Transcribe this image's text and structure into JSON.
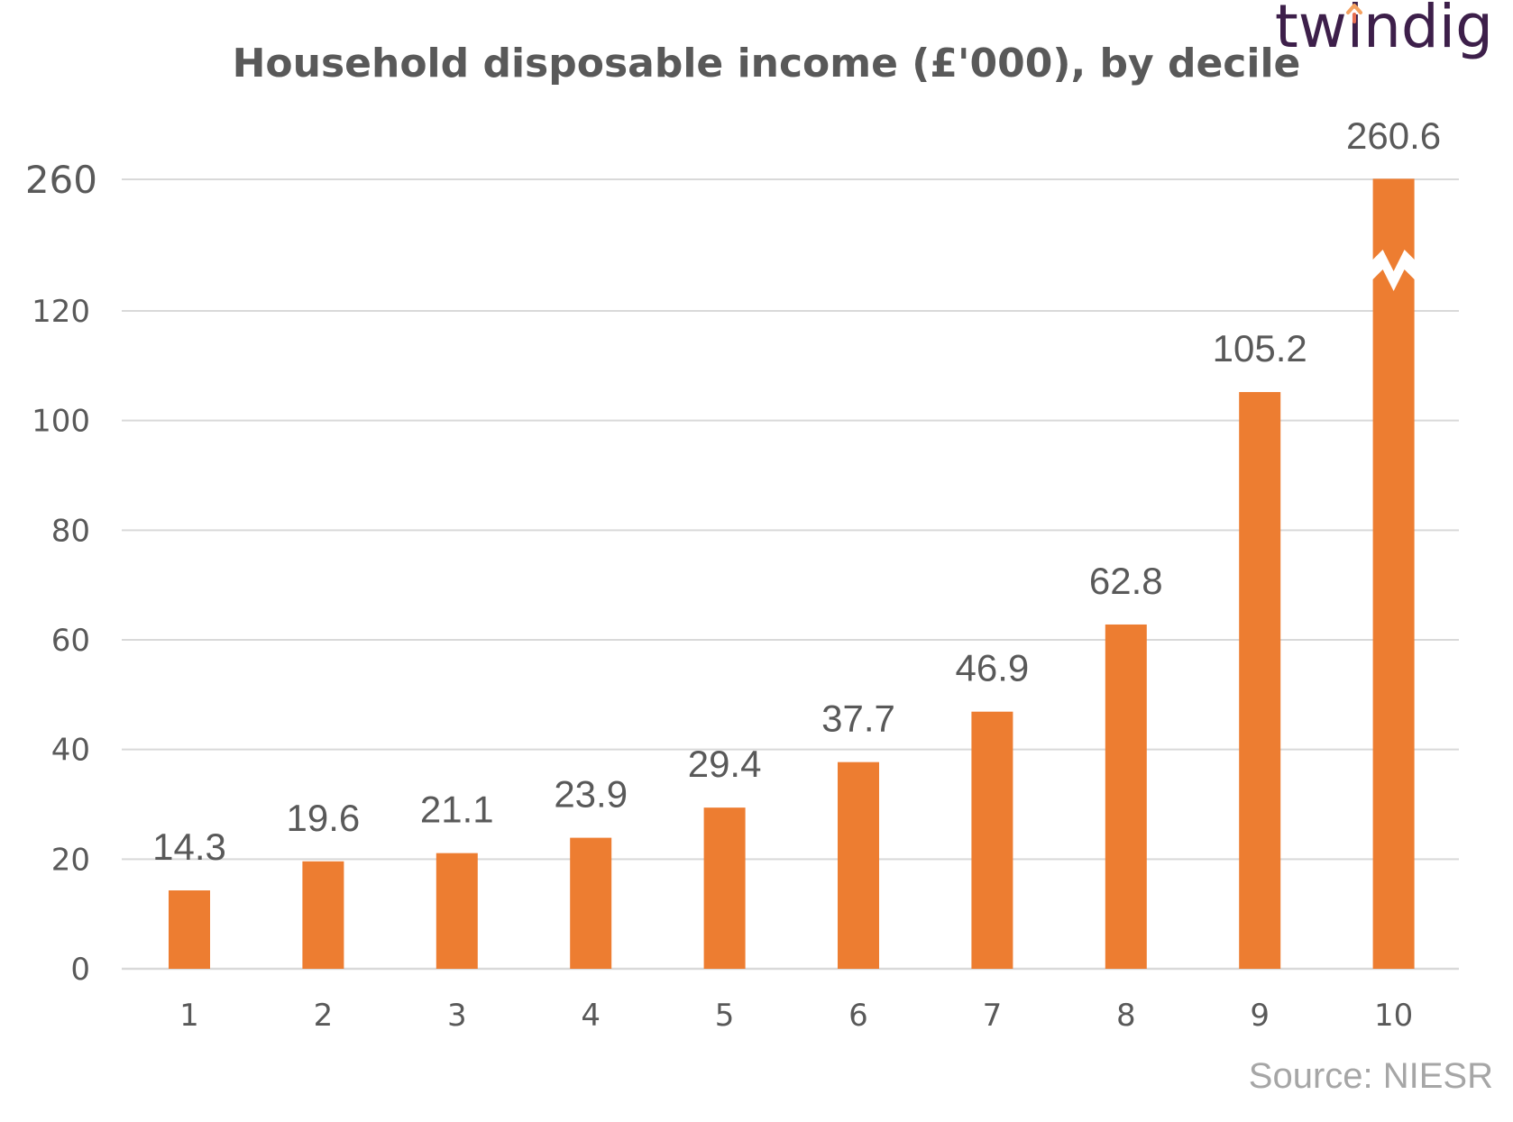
{
  "chart_data": {
    "type": "bar",
    "title": "Household disposable income (£'000), by decile",
    "categories": [
      "1",
      "2",
      "3",
      "4",
      "5",
      "6",
      "7",
      "8",
      "9",
      "10"
    ],
    "values": [
      14.3,
      19.6,
      21.1,
      23.9,
      29.4,
      37.7,
      46.9,
      62.8,
      105.2,
      260.6
    ],
    "data_labels": [
      "14.3",
      "19.6",
      "21.1",
      "23.9",
      "29.4",
      "37.7",
      "46.9",
      "62.8",
      "105.2",
      "260.6"
    ],
    "y_ticks": [
      "0",
      "20",
      "40",
      "60",
      "80",
      "100",
      "120",
      "260"
    ],
    "ylim": [
      0,
      120
    ],
    "axis_break": {
      "from": 120,
      "to": 260,
      "top_tick": "260"
    },
    "xlabel": "",
    "ylabel": "",
    "grid": true,
    "legend": "none",
    "bar_color": "#ed7d31",
    "grid_color": "#d9d9d9"
  },
  "source": "Source: NIESR",
  "logo": "twindig",
  "logo_colors": {
    "text": "#3d1f4a",
    "accent": "#f4a261",
    "accent2": "#e76f51"
  }
}
